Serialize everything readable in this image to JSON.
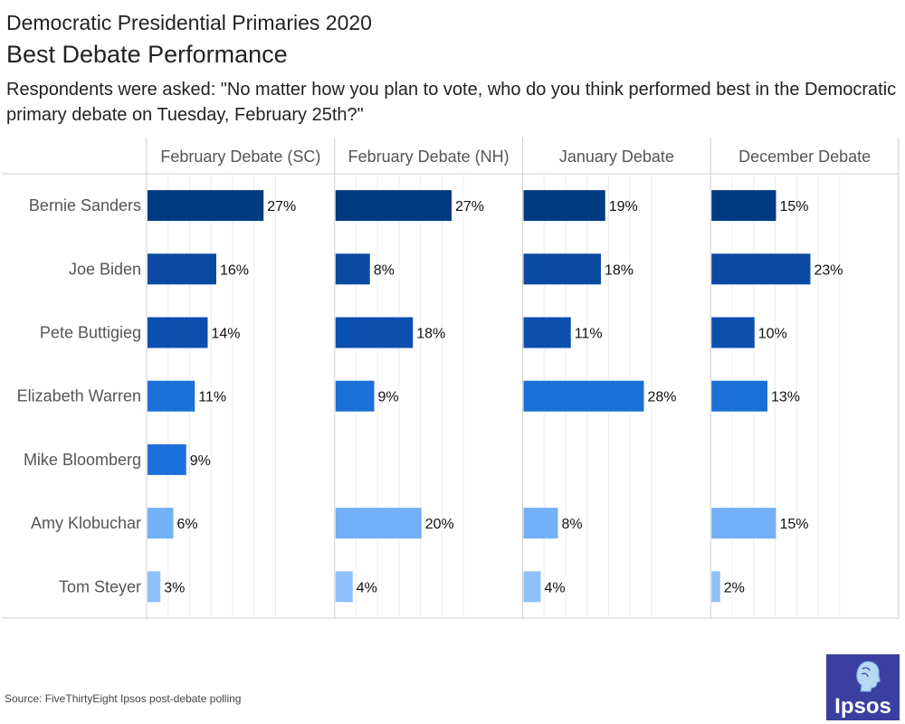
{
  "header": {
    "title": "Democratic Presidential Primaries 2020",
    "subtitle": "Best Debate Performance",
    "question": "Respondents were asked: \"No matter how you plan to vote, who do you think performed best in the Democratic primary debate on Tuesday, February 25th?\""
  },
  "chart_data": {
    "type": "bar",
    "orientation": "horizontal",
    "title": "Best Debate Performance",
    "categories": [
      "Bernie Sanders",
      "Joe Biden",
      "Pete Buttigieg",
      "Elizabeth Warren",
      "Mike Bloomberg",
      "Amy Klobuchar",
      "Tom Steyer"
    ],
    "category_colors": [
      "#003a80",
      "#0a4aa0",
      "#0b4fae",
      "#1c6fd6",
      "#1d70da",
      "#72b0f8",
      "#8ec0fa"
    ],
    "value_unit": "%",
    "xlim": [
      0,
      35
    ],
    "series": [
      {
        "name": "February Debate (SC)",
        "values": [
          27,
          16,
          14,
          11,
          9,
          6,
          3
        ]
      },
      {
        "name": "February Debate (NH)",
        "values": [
          27,
          8,
          18,
          9,
          null,
          20,
          4
        ]
      },
      {
        "name": "January Debate",
        "values": [
          19,
          18,
          11,
          28,
          null,
          8,
          4
        ]
      },
      {
        "name": "December Debate",
        "values": [
          15,
          23,
          10,
          13,
          null,
          15,
          2
        ]
      }
    ]
  },
  "footer": {
    "source": "Source: FiveThirtyEight Ipsos post-debate polling",
    "logo_text": "Ipsos"
  }
}
